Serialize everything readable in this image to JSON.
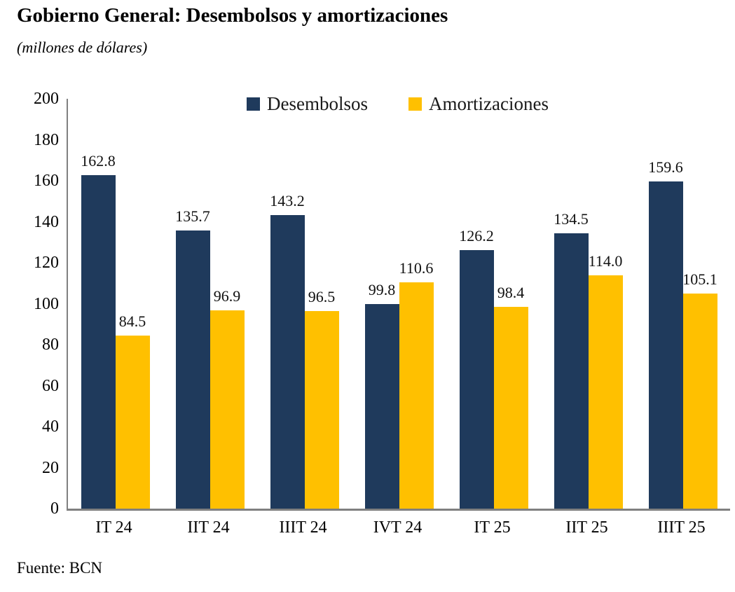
{
  "header": {
    "title": "Gobierno General: Desembolsos y amortizaciones",
    "subtitle": "(millones de dólares)"
  },
  "footer": {
    "source": "Fuente: BCN"
  },
  "chart_data": {
    "type": "bar",
    "title": "Gobierno General: Desembolsos y amortizaciones",
    "subtitle": "(millones de dólares)",
    "categories": [
      "IT 24",
      "IIT 24",
      "IIIT 24",
      "IVT 24",
      "IT 25",
      "IIT 25",
      "IIIT 25"
    ],
    "series": [
      {
        "name": "Desembolsos",
        "color": "#1F3A5C",
        "values": [
          162.8,
          135.7,
          143.2,
          99.8,
          126.2,
          134.5,
          159.6
        ]
      },
      {
        "name": "Amortizaciones",
        "color": "#FFC000",
        "values": [
          84.5,
          96.9,
          96.5,
          110.6,
          98.4,
          114.0,
          105.1
        ]
      }
    ],
    "ylim": [
      0,
      200
    ],
    "ytick_step": 20,
    "yticks": [
      0,
      20,
      40,
      60,
      80,
      100,
      120,
      140,
      160,
      180,
      200
    ],
    "grid": false,
    "legend_position": "top-center",
    "value_labels": true,
    "value_label_decimals": 1,
    "axis_color": "#808080",
    "source": "Fuente: BCN"
  }
}
